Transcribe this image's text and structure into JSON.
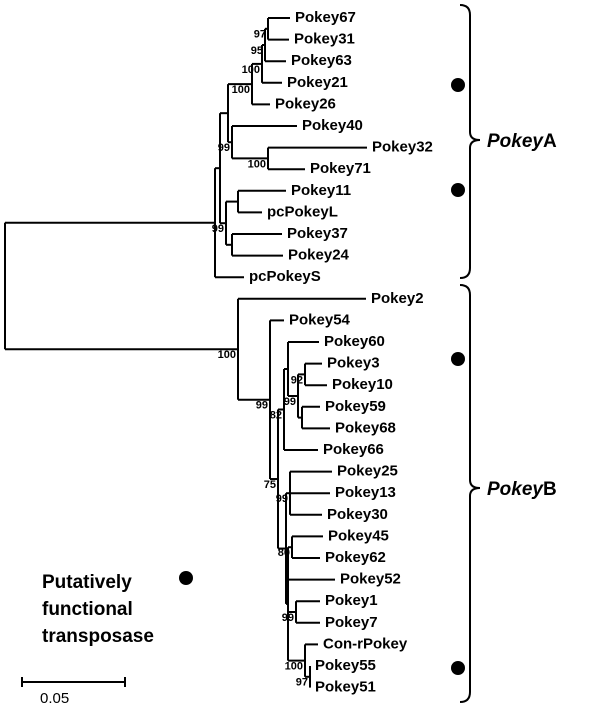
{
  "leaves": [
    "Pokey67",
    "Pokey31",
    "Pokey63",
    "Pokey21",
    "Pokey26",
    "Pokey40",
    "Pokey32",
    "Pokey71",
    "Pokey11",
    "pcPokeyL",
    "Pokey37",
    "Pokey24",
    "pcPokeyS",
    "Pokey2",
    "Pokey54",
    "Pokey60",
    "Pokey3",
    "Pokey10",
    "Pokey59",
    "Pokey68",
    "Pokey66",
    "Pokey25",
    "Pokey13",
    "Pokey30",
    "Pokey45",
    "Pokey62",
    "Pokey52",
    "Pokey1",
    "Pokey7",
    "Con-rPokey",
    "Pokey55",
    "Pokey51"
  ],
  "bootstraps": [
    97,
    95,
    100,
    100,
    100,
    99,
    99,
    100,
    99,
    92,
    99,
    75,
    82,
    99,
    80,
    99,
    100,
    97
  ],
  "clades": [
    {
      "italic": "Pokey",
      "suffix": "A"
    },
    {
      "italic": "Pokey",
      "suffix": "B"
    }
  ],
  "legend": {
    "lines": [
      "Putatively",
      "functional",
      "transposase"
    ]
  },
  "scale_bar": {
    "label": "0.05"
  }
}
